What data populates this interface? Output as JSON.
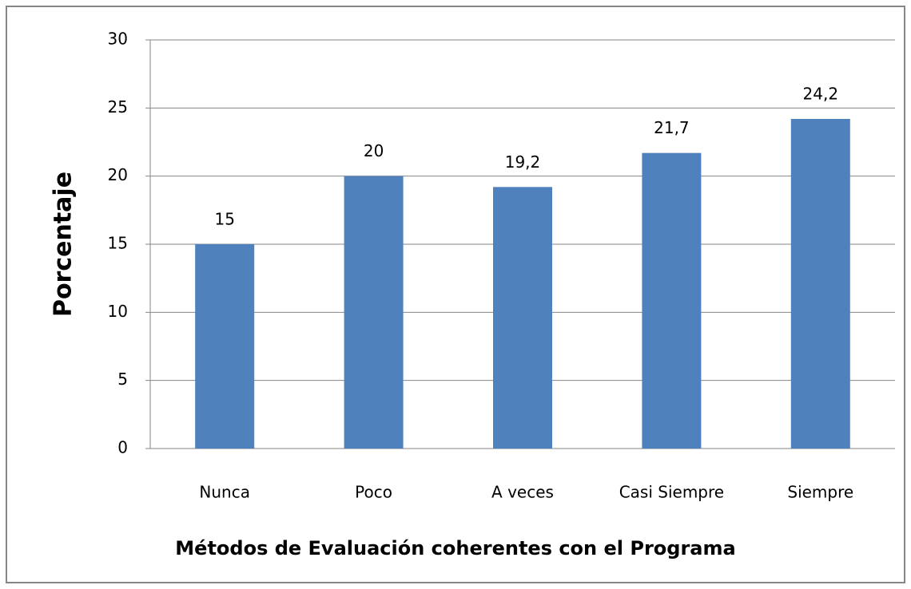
{
  "chart_data": {
    "type": "bar",
    "xlabel": "Métodos de Evaluación coherentes con el Programa",
    "ylabel": "Porcentaje",
    "categories": [
      "Nunca",
      "Poco",
      "A veces",
      "Casi Siempre",
      "Siempre"
    ],
    "values": [
      15,
      20,
      19.2,
      21.7,
      24.2
    ],
    "value_labels": [
      "15",
      "20",
      "19,2",
      "21,7",
      "24,2"
    ],
    "color": "#4f81bd",
    "ylim": [
      0,
      30
    ],
    "yticks": [
      0,
      5,
      10,
      15,
      20,
      25,
      30
    ],
    "grid": true
  }
}
